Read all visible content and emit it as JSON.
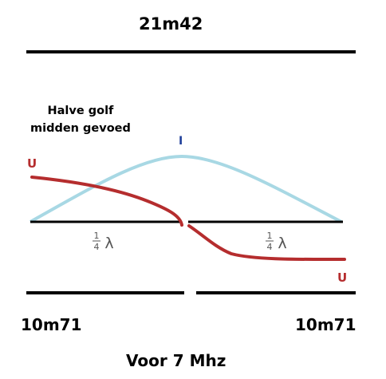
{
  "total_length": "21m42",
  "caption": {
    "line1": "Halve golf",
    "line2": "midden gevoed"
  },
  "current_label": "I",
  "voltage_label_left": "U",
  "voltage_label_right": "U",
  "quarter_wave_left": {
    "num": "1",
    "den": "4",
    "symbol": "λ"
  },
  "quarter_wave_right": {
    "num": "1",
    "den": "4",
    "symbol": "λ"
  },
  "left_length": "10m71",
  "right_length": "10m71",
  "frequency": "Voor 7 Mhz",
  "colors": {
    "current": "#a8d8e4",
    "voltage": "#b52d2e",
    "current_label": "#1f3f9a"
  }
}
